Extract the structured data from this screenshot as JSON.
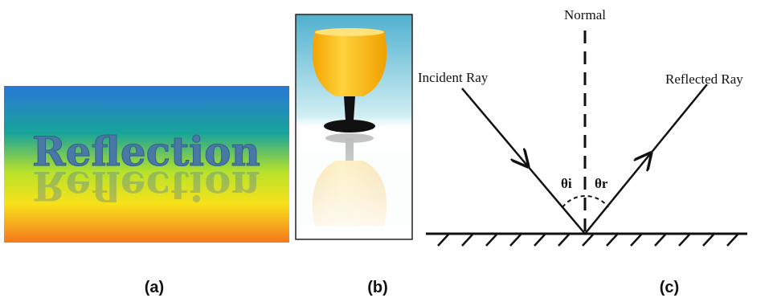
{
  "panels": [
    {
      "label": "(a)",
      "text": "Reflection"
    },
    {
      "label": "(b)"
    },
    {
      "label": "(c)",
      "normal": "Normal",
      "incident": "Incident Ray",
      "reflected": "Reflected Ray",
      "angle_i": "θi",
      "angle_r": "θr"
    }
  ]
}
